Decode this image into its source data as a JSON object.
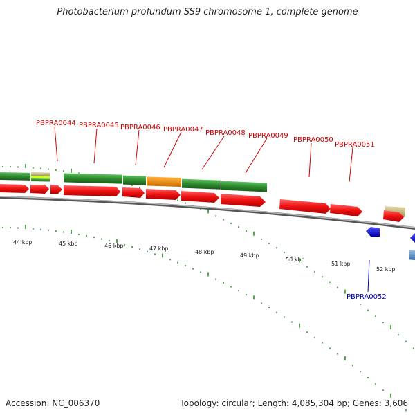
{
  "title": "Photobacterium profundum SS9 chromosome 1, complete genome",
  "footer": {
    "accession": "Accession: NC_006370",
    "summary": "Topology: circular; Length: 4,085,304 bp; Genes: 3,606"
  },
  "scale_labels": [
    "44 kbp",
    "45 kbp",
    "46 kbp",
    "47 kbp",
    "48 kbp",
    "49 kbp",
    "50 kbp",
    "51 kbp",
    "52 kbp"
  ],
  "gene_labels_forward": [
    "PBPRA0044",
    "PBPRA0045",
    "PBPRA0046",
    "PBPRA0047",
    "PBPRA0048",
    "PBPRA0049",
    "PBPRA0050",
    "PBPRA0051"
  ],
  "gene_labels_reverse": [
    "PBPRA0052"
  ],
  "colors": {
    "cds_forward": "#ee1111",
    "cds_reverse": "#1111dd",
    "cog_green": "#2e8b2e",
    "cog_orange": "#f08c00",
    "cog_khaki": "#c8b878",
    "cog_lightblue": "#5b8fc8",
    "backbone": "#8a8a8a",
    "tick": "#1a8a1a"
  }
}
